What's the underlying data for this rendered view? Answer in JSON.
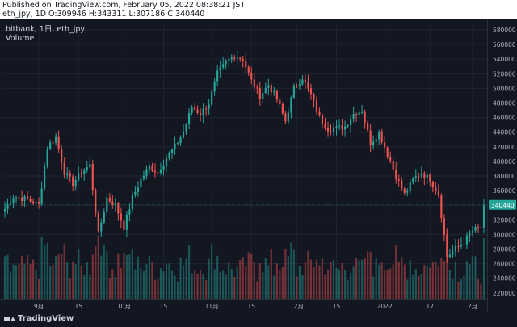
{
  "header": {
    "published": "Published on TradingView.com, February 05, 2022 08:38:21 JST",
    "ohlc": "eth_jpy, 1D O:309946 H:343311 L:307186 C:340440"
  },
  "legend": {
    "symbol": "bitbank, 1日, eth_jpy",
    "volume": "Volume"
  },
  "footer": {
    "brand": "TradingView"
  },
  "colors": {
    "up": "#26a69a",
    "down": "#ef5350",
    "bg": "#131722",
    "text": "#b2b5be"
  },
  "chart_data": {
    "type": "candlestick",
    "y_ticks": [
      220000,
      240000,
      260000,
      280000,
      300000,
      320000,
      340000,
      360000,
      380000,
      400000,
      420000,
      440000,
      460000,
      480000,
      500000,
      520000,
      540000,
      560000,
      580000
    ],
    "ylim": [
      212000,
      590000
    ],
    "last_price": "340440",
    "last_value": 340440,
    "x_ticks": [
      {
        "label": "9月",
        "index": 12
      },
      {
        "label": "15",
        "index": 26
      },
      {
        "label": "10月",
        "index": 42
      },
      {
        "label": "15",
        "index": 56
      },
      {
        "label": "11月",
        "index": 73
      },
      {
        "label": "15",
        "index": 87
      },
      {
        "label": "12月",
        "index": 103
      },
      {
        "label": "15",
        "index": 117
      },
      {
        "label": "2022",
        "index": 134
      },
      {
        "label": "17",
        "index": 150
      },
      {
        "label": "2月",
        "index": 165
      }
    ],
    "price_anchors": [
      [
        0,
        335000
      ],
      [
        3,
        352000
      ],
      [
        8,
        348000
      ],
      [
        12,
        340000
      ],
      [
        15,
        420000
      ],
      [
        18,
        433000
      ],
      [
        21,
        385000
      ],
      [
        24,
        370000
      ],
      [
        27,
        385000
      ],
      [
        30,
        395000
      ],
      [
        33,
        300000
      ],
      [
        36,
        350000
      ],
      [
        39,
        340000
      ],
      [
        42,
        310000
      ],
      [
        45,
        350000
      ],
      [
        48,
        375000
      ],
      [
        51,
        393000
      ],
      [
        54,
        385000
      ],
      [
        57,
        405000
      ],
      [
        60,
        420000
      ],
      [
        63,
        440000
      ],
      [
        66,
        475000
      ],
      [
        69,
        465000
      ],
      [
        72,
        480000
      ],
      [
        75,
        520000
      ],
      [
        78,
        535000
      ],
      [
        81,
        545000
      ],
      [
        84,
        540000
      ],
      [
        87,
        510000
      ],
      [
        90,
        490000
      ],
      [
        93,
        505000
      ],
      [
        96,
        485000
      ],
      [
        99,
        455000
      ],
      [
        102,
        500000
      ],
      [
        105,
        515000
      ],
      [
        108,
        490000
      ],
      [
        111,
        460000
      ],
      [
        114,
        445000
      ],
      [
        117,
        445000
      ],
      [
        120,
        448000
      ],
      [
        123,
        465000
      ],
      [
        126,
        470000
      ],
      [
        129,
        425000
      ],
      [
        132,
        440000
      ],
      [
        135,
        410000
      ],
      [
        138,
        380000
      ],
      [
        141,
        355000
      ],
      [
        144,
        375000
      ],
      [
        147,
        385000
      ],
      [
        150,
        375000
      ],
      [
        153,
        355000
      ],
      [
        156,
        270000
      ],
      [
        159,
        280000
      ],
      [
        162,
        290000
      ],
      [
        165,
        305000
      ],
      [
        168,
        310000
      ],
      [
        169,
        340440
      ]
    ]
  }
}
